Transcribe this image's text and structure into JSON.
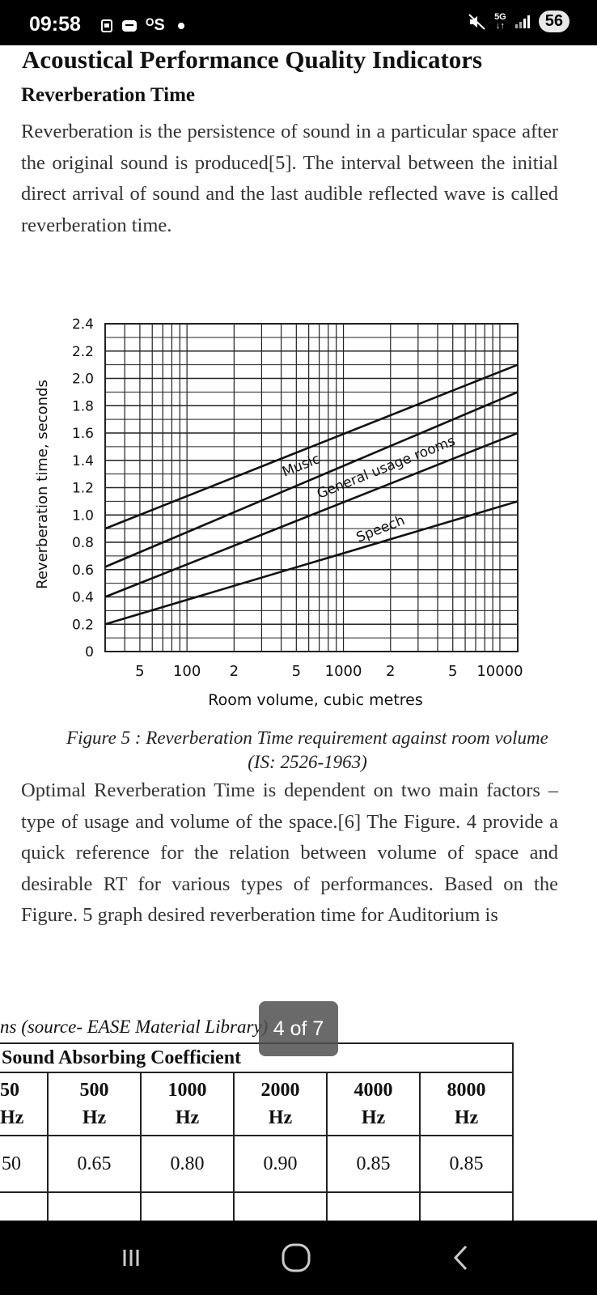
{
  "status_bar": {
    "time": "09:58",
    "left_icons": [
      "notification-icon",
      "message-icon",
      "os-indicator"
    ],
    "os_label": "ᴼS",
    "network": "5G",
    "battery": "56"
  },
  "document": {
    "heading": "Acoustical Performance Quality Indicators",
    "subheading": "Reverberation Time",
    "paragraph1": "Reverberation is the persistence of sound in a particular space after the original sound is produced[5]. The interval between the initial direct arrival of sound and the last audible reflected wave is called reverberation time.",
    "figure_caption": "Figure 5 : Reverberation Time requirement against room volume (IS: 2526-1963)",
    "paragraph2": "Optimal Reverberation Time is dependent on two main factors – type of usage and volume of the space.[6] The Figure. 4 provide a quick reference for the relation between volume of space and desirable RT for various types of performances. Based on the Figure. 5 graph desired reverberation time for Auditorium is"
  },
  "chart_data": {
    "type": "line",
    "xlabel": "Room volume, cubic metres",
    "ylabel": "Reverberation time, seconds",
    "x_scale": "log",
    "xlim": [
      30,
      13000
    ],
    "ylim": [
      0,
      2.4
    ],
    "grid": true,
    "x_tick_labels": [
      {
        "x": 50,
        "label": "5"
      },
      {
        "x": 100,
        "label": "100"
      },
      {
        "x": 200,
        "label": "2"
      },
      {
        "x": 500,
        "label": "5"
      },
      {
        "x": 1000,
        "label": "1000"
      },
      {
        "x": 2000,
        "label": "2"
      },
      {
        "x": 5000,
        "label": "5"
      },
      {
        "x": 10000,
        "label": "10000"
      }
    ],
    "y_tick_labels": [
      "0",
      "0.2",
      "0.4",
      "0.6",
      "0.8",
      "1.0",
      "1.2",
      "1.4",
      "1.6",
      "1.8",
      "2.0",
      "2.2",
      "2.4"
    ],
    "series": [
      {
        "name": "Music",
        "x": [
          30,
          13000
        ],
        "y": [
          0.9,
          2.1
        ]
      },
      {
        "name": "General usage rooms",
        "x": [
          30,
          13000
        ],
        "y": [
          0.62,
          1.9
        ]
      },
      {
        "name": "",
        "x": [
          30,
          13000
        ],
        "y": [
          0.4,
          1.6
        ]
      },
      {
        "name": "Speech",
        "x": [
          30,
          13000
        ],
        "y": [
          0.2,
          1.1
        ]
      }
    ]
  },
  "table_fragment": {
    "caption": "ns (source- EASE Material Library)",
    "title": "Sound Absorbing Coefficient",
    "headers": [
      {
        "value": "50",
        "unit": "Hz"
      },
      {
        "value": "500",
        "unit": "Hz"
      },
      {
        "value": "1000",
        "unit": "Hz"
      },
      {
        "value": "2000",
        "unit": "Hz"
      },
      {
        "value": "4000",
        "unit": "Hz"
      },
      {
        "value": "8000",
        "unit": "Hz"
      }
    ],
    "row1": [
      "50",
      "0.65",
      "0.80",
      "0.90",
      "0.85",
      "0.85"
    ]
  },
  "page_indicator": "4 of 7",
  "nav": {
    "recents": "recents-icon",
    "home": "home-icon",
    "back": "back-icon"
  }
}
